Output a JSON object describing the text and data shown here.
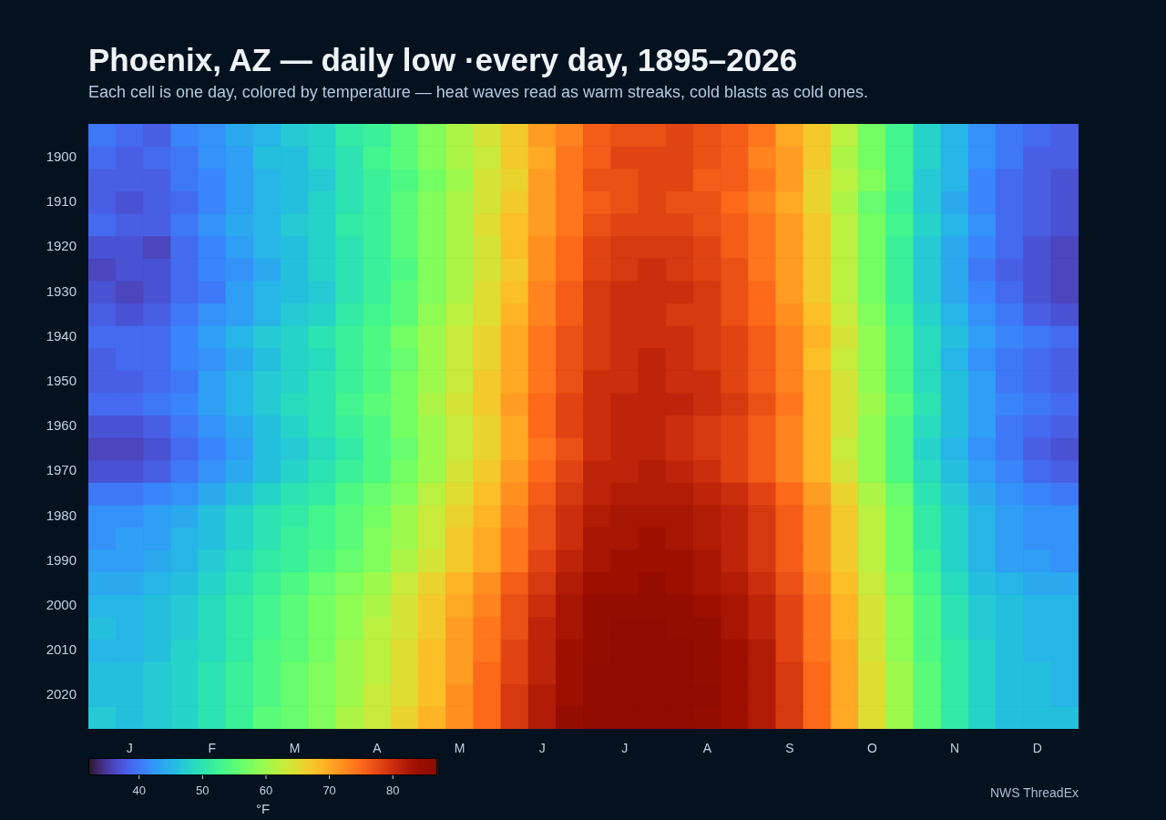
{
  "chart_data": {
    "type": "heatmap",
    "title": "Phoenix, AZ — daily low ·every day, 1895–2026",
    "subtitle": "Each cell is one day, colored by temperature — heat waves read as warm streaks, cold blasts as cold ones.",
    "categories": [
      null,
      "J",
      null,
      null,
      "F",
      null,
      null,
      "M",
      null,
      null,
      "A",
      null,
      null,
      "M",
      null,
      null,
      "J",
      null,
      null,
      "J",
      null,
      null,
      "A",
      null,
      null,
      "S",
      null,
      null,
      "O",
      null,
      null,
      "N",
      null,
      null,
      "D",
      null
    ],
    "y_categories": [
      null,
      "1900",
      null,
      "1910",
      null,
      "1920",
      null,
      "1930",
      null,
      "1940",
      null,
      "1950",
      null,
      "1960",
      null,
      "1970",
      null,
      "1980",
      null,
      "1990",
      null,
      "2000",
      null,
      "2010",
      null,
      "2020",
      null
    ],
    "cells": [
      [
        40,
        39,
        38,
        41,
        42,
        44,
        45,
        47,
        48,
        51,
        52,
        55,
        58,
        61,
        64,
        67,
        71,
        73,
        76,
        77,
        77,
        78,
        77,
        76,
        74,
        70,
        67,
        62,
        57,
        53,
        48,
        45,
        42,
        40,
        39,
        38
      ],
      [
        39,
        38,
        39,
        40,
        42,
        43,
        46,
        46,
        48,
        50,
        53,
        55,
        58,
        61,
        63,
        67,
        70,
        74,
        76,
        78,
        78,
        78,
        77,
        76,
        73,
        71,
        67,
        61,
        57,
        53,
        48,
        45,
        42,
        40,
        38,
        38
      ],
      [
        38,
        38,
        38,
        40,
        41,
        43,
        45,
        46,
        47,
        50,
        52,
        54,
        57,
        60,
        64,
        66,
        71,
        74,
        77,
        77,
        78,
        78,
        76,
        76,
        74,
        71,
        66,
        62,
        58,
        53,
        47,
        45,
        41,
        39,
        38,
        37
      ],
      [
        38,
        37,
        38,
        39,
        41,
        43,
        45,
        46,
        48,
        50,
        52,
        55,
        58,
        61,
        64,
        67,
        71,
        74,
        76,
        77,
        78,
        77,
        77,
        75,
        73,
        70,
        66,
        61,
        56,
        52,
        47,
        44,
        41,
        39,
        38,
        37
      ],
      [
        39,
        38,
        38,
        40,
        42,
        44,
        45,
        47,
        48,
        51,
        52,
        55,
        58,
        61,
        65,
        68,
        71,
        74,
        77,
        78,
        78,
        78,
        77,
        76,
        74,
        71,
        67,
        62,
        57,
        53,
        48,
        45,
        42,
        39,
        38,
        37
      ],
      [
        37,
        37,
        36,
        39,
        41,
        43,
        45,
        46,
        48,
        50,
        52,
        55,
        58,
        61,
        64,
        68,
        72,
        75,
        78,
        79,
        79,
        79,
        78,
        76,
        74,
        71,
        67,
        62,
        57,
        52,
        47,
        44,
        41,
        39,
        37,
        36
      ],
      [
        36,
        37,
        37,
        39,
        41,
        42,
        44,
        46,
        48,
        50,
        52,
        54,
        58,
        61,
        64,
        67,
        72,
        75,
        78,
        79,
        80,
        79,
        78,
        77,
        74,
        71,
        67,
        62,
        57,
        52,
        47,
        44,
        40,
        38,
        37,
        36
      ],
      [
        37,
        36,
        37,
        39,
        40,
        43,
        45,
        46,
        47,
        50,
        52,
        55,
        58,
        61,
        65,
        68,
        73,
        76,
        79,
        80,
        80,
        80,
        79,
        77,
        75,
        71,
        67,
        62,
        57,
        52,
        47,
        44,
        41,
        39,
        37,
        36
      ],
      [
        38,
        37,
        38,
        40,
        42,
        43,
        45,
        47,
        48,
        51,
        53,
        55,
        59,
        62,
        65,
        69,
        73,
        76,
        79,
        80,
        80,
        79,
        79,
        77,
        75,
        72,
        68,
        63,
        58,
        53,
        48,
        45,
        42,
        40,
        38,
        37
      ],
      [
        39,
        39,
        39,
        41,
        43,
        45,
        47,
        48,
        50,
        52,
        54,
        57,
        60,
        63,
        66,
        70,
        74,
        77,
        79,
        80,
        80,
        80,
        79,
        78,
        76,
        73,
        69,
        64,
        59,
        54,
        49,
        46,
        43,
        41,
        40,
        39
      ],
      [
        38,
        39,
        39,
        41,
        42,
        44,
        46,
        48,
        49,
        52,
        54,
        56,
        60,
        63,
        66,
        70,
        74,
        77,
        79,
        80,
        81,
        80,
        79,
        78,
        76,
        73,
        68,
        63,
        59,
        54,
        49,
        45,
        42,
        40,
        39,
        38
      ],
      [
        38,
        38,
        39,
        40,
        43,
        45,
        47,
        48,
        50,
        52,
        54,
        57,
        60,
        63,
        67,
        70,
        74,
        77,
        80,
        80,
        81,
        80,
        80,
        78,
        76,
        73,
        69,
        64,
        59,
        54,
        49,
        46,
        43,
        40,
        39,
        38
      ],
      [
        39,
        39,
        40,
        41,
        43,
        45,
        47,
        49,
        50,
        53,
        55,
        57,
        61,
        64,
        67,
        71,
        75,
        78,
        80,
        81,
        81,
        81,
        80,
        79,
        77,
        74,
        69,
        64,
        60,
        55,
        50,
        46,
        43,
        41,
        40,
        39
      ],
      [
        37,
        37,
        38,
        40,
        42,
        44,
        46,
        48,
        50,
        52,
        54,
        57,
        60,
        63,
        66,
        70,
        75,
        78,
        80,
        81,
        81,
        80,
        79,
        78,
        76,
        73,
        69,
        64,
        59,
        54,
        49,
        46,
        43,
        40,
        39,
        38
      ],
      [
        36,
        36,
        37,
        39,
        41,
        43,
        46,
        47,
        49,
        51,
        54,
        56,
        60,
        63,
        66,
        70,
        74,
        77,
        80,
        81,
        81,
        80,
        79,
        78,
        76,
        73,
        69,
        63,
        59,
        54,
        48,
        45,
        42,
        40,
        38,
        37
      ],
      [
        37,
        37,
        38,
        40,
        42,
        44,
        46,
        48,
        50,
        52,
        54,
        57,
        60,
        64,
        67,
        71,
        75,
        78,
        81,
        81,
        82,
        81,
        80,
        78,
        76,
        73,
        69,
        64,
        59,
        54,
        49,
        46,
        43,
        41,
        39,
        38
      ],
      [
        40,
        40,
        41,
        42,
        44,
        46,
        48,
        50,
        51,
        54,
        56,
        58,
        62,
        65,
        68,
        72,
        76,
        79,
        81,
        82,
        82,
        82,
        81,
        80,
        78,
        75,
        71,
        66,
        61,
        56,
        50,
        47,
        44,
        42,
        41,
        40
      ],
      [
        42,
        42,
        43,
        44,
        46,
        48,
        50,
        51,
        53,
        55,
        57,
        60,
        63,
        66,
        69,
        73,
        77,
        80,
        82,
        83,
        83,
        83,
        82,
        81,
        79,
        76,
        72,
        67,
        62,
        57,
        51,
        48,
        45,
        43,
        42,
        42
      ],
      [
        42,
        43,
        43,
        45,
        46,
        48,
        50,
        52,
        53,
        55,
        58,
        60,
        63,
        67,
        70,
        74,
        77,
        80,
        83,
        83,
        84,
        83,
        82,
        81,
        79,
        76,
        72,
        67,
        62,
        57,
        51,
        48,
        45,
        43,
        42,
        42
      ],
      [
        43,
        43,
        44,
        45,
        47,
        49,
        51,
        52,
        54,
        56,
        58,
        61,
        64,
        67,
        70,
        74,
        78,
        81,
        83,
        84,
        84,
        84,
        83,
        81,
        79,
        76,
        72,
        67,
        62,
        57,
        52,
        48,
        45,
        43,
        43,
        42
      ],
      [
        44,
        44,
        45,
        46,
        48,
        50,
        52,
        54,
        56,
        58,
        60,
        63,
        66,
        69,
        72,
        76,
        79,
        82,
        84,
        84,
        85,
        84,
        83,
        82,
        80,
        77,
        73,
        68,
        63,
        58,
        53,
        49,
        46,
        45,
        44,
        44
      ],
      [
        45,
        45,
        46,
        47,
        49,
        51,
        53,
        55,
        57,
        59,
        61,
        64,
        67,
        70,
        73,
        77,
        80,
        83,
        85,
        85,
        85,
        85,
        84,
        83,
        81,
        78,
        74,
        69,
        64,
        59,
        54,
        50,
        47,
        46,
        45,
        45
      ],
      [
        46,
        45,
        46,
        47,
        49,
        51,
        53,
        55,
        57,
        59,
        62,
        64,
        67,
        71,
        74,
        77,
        81,
        83,
        85,
        86,
        86,
        85,
        85,
        83,
        81,
        78,
        74,
        69,
        64,
        59,
        54,
        50,
        47,
        46,
        45,
        45
      ],
      [
        45,
        45,
        46,
        48,
        49,
        51,
        54,
        55,
        57,
        60,
        62,
        65,
        68,
        71,
        74,
        78,
        81,
        84,
        85,
        86,
        86,
        86,
        85,
        84,
        82,
        78,
        74,
        70,
        64,
        59,
        54,
        51,
        48,
        46,
        45,
        45
      ],
      [
        46,
        46,
        47,
        48,
        50,
        52,
        54,
        56,
        58,
        60,
        62,
        65,
        68,
        71,
        75,
        78,
        81,
        84,
        86,
        86,
        86,
        86,
        85,
        84,
        82,
        79,
        75,
        70,
        65,
        60,
        55,
        51,
        48,
        46,
        46,
        45
      ],
      [
        46,
        46,
        47,
        48,
        50,
        52,
        54,
        56,
        58,
        60,
        63,
        65,
        68,
        72,
        75,
        79,
        82,
        84,
        86,
        86,
        86,
        86,
        86,
        84,
        82,
        79,
        75,
        70,
        65,
        60,
        55,
        51,
        48,
        46,
        46,
        45
      ],
      [
        47,
        46,
        47,
        48,
        50,
        52,
        55,
        56,
        58,
        61,
        63,
        66,
        69,
        72,
        75,
        79,
        82,
        85,
        86,
        86,
        86,
        86,
        85,
        84,
        82,
        79,
        75,
        70,
        65,
        60,
        55,
        51,
        48,
        46,
        46,
        46
      ]
    ],
    "clim": [
      32,
      87
    ],
    "cticks": [
      40,
      50,
      60,
      70,
      80
    ],
    "clabel": "°F",
    "annotations": [
      "NWS ThreadEx"
    ]
  }
}
